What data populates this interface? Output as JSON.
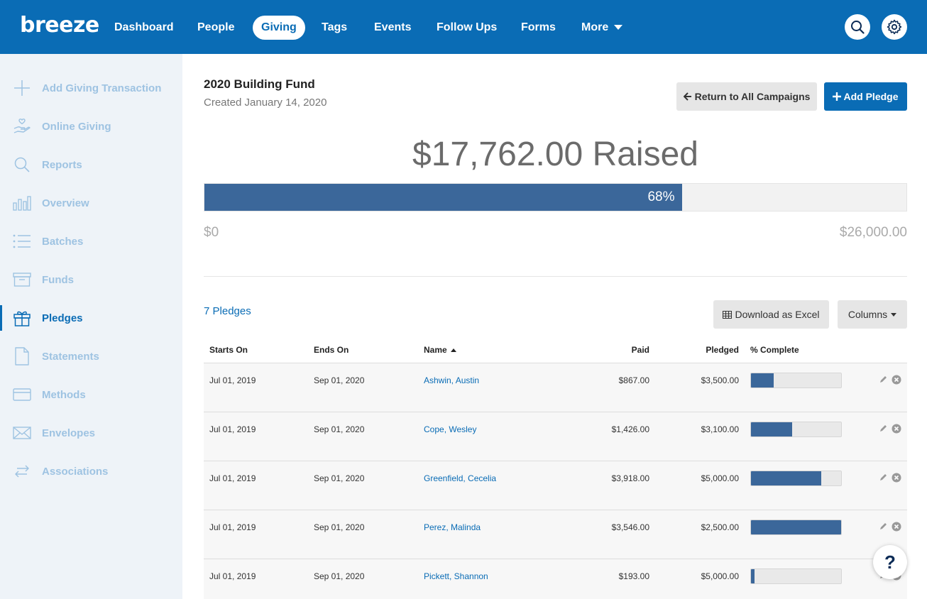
{
  "brand": {
    "logo_text": "breeze",
    "primary_color": "#0a6cb5",
    "bar_color": "#3b679a"
  },
  "nav": {
    "items": [
      {
        "label": "Dashboard",
        "active": false
      },
      {
        "label": "People",
        "active": false
      },
      {
        "label": "Giving",
        "active": true
      },
      {
        "label": "Tags",
        "active": false
      },
      {
        "label": "Events",
        "active": false
      },
      {
        "label": "Follow Ups",
        "active": false
      },
      {
        "label": "Forms",
        "active": false
      },
      {
        "label": "More",
        "active": false
      }
    ],
    "search_icon": "search-icon",
    "settings_icon": "gear-icon"
  },
  "sidebar": {
    "items": [
      {
        "label": "Add Giving Transaction",
        "icon": "plus-icon"
      },
      {
        "label": "Online Giving",
        "icon": "hand-heart-icon"
      },
      {
        "label": "Reports",
        "icon": "search-icon"
      },
      {
        "label": "Overview",
        "icon": "bar-chart-icon"
      },
      {
        "label": "Batches",
        "icon": "list-icon"
      },
      {
        "label": "Funds",
        "icon": "archive-box-icon"
      },
      {
        "label": "Pledges",
        "icon": "gift-icon",
        "active": true
      },
      {
        "label": "Statements",
        "icon": "document-icon"
      },
      {
        "label": "Methods",
        "icon": "credit-card-icon"
      },
      {
        "label": "Envelopes",
        "icon": "envelope-icon"
      },
      {
        "label": "Associations",
        "icon": "swap-arrows-icon"
      }
    ]
  },
  "campaign": {
    "title": "2020 Building Fund",
    "created": "Created January 14, 2020",
    "return_label": "Return to All Campaigns",
    "add_pledge_label": "Add Pledge",
    "raised_text": "$17,762.00 Raised",
    "progress_percent": 68,
    "progress_label": "68%",
    "min_label": "$0",
    "max_label": "$26,000.00"
  },
  "pledges": {
    "count_label": "7 Pledges",
    "download_label": "Download as Excel",
    "columns_label": "Columns",
    "headers": {
      "starts": "Starts On",
      "ends": "Ends On",
      "name": "Name",
      "paid": "Paid",
      "pledged": "Pledged",
      "complete": "% Complete"
    },
    "rows": [
      {
        "starts": "Jul 01, 2019",
        "ends": "Sep 01, 2020",
        "name": "Ashwin, Austin",
        "paid": "$867.00",
        "pledged": "$3,500.00",
        "complete": 0.25
      },
      {
        "starts": "Jul 01, 2019",
        "ends": "Sep 01, 2020",
        "name": "Cope, Wesley",
        "paid": "$1,426.00",
        "pledged": "$3,100.00",
        "complete": 0.46
      },
      {
        "starts": "Jul 01, 2019",
        "ends": "Sep 01, 2020",
        "name": "Greenfield, Cecelia",
        "paid": "$3,918.00",
        "pledged": "$5,000.00",
        "complete": 0.78
      },
      {
        "starts": "Jul 01, 2019",
        "ends": "Sep 01, 2020",
        "name": "Perez, Malinda",
        "paid": "$3,546.00",
        "pledged": "$2,500.00",
        "complete": 1.0
      },
      {
        "starts": "Jul 01, 2019",
        "ends": "Sep 01, 2020",
        "name": "Pickett, Shannon",
        "paid": "$193.00",
        "pledged": "$5,000.00",
        "complete": 0.04
      }
    ]
  },
  "help": {
    "label": "?"
  }
}
